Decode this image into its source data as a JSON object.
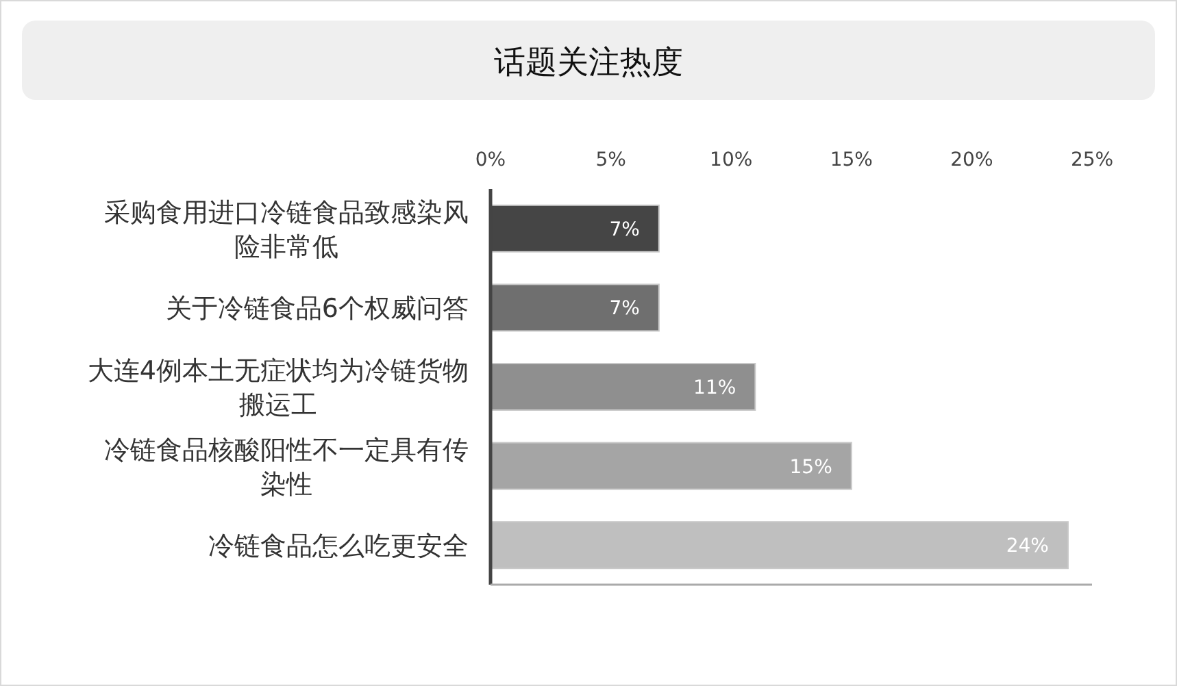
{
  "chart_data": {
    "type": "bar",
    "orientation": "horizontal",
    "title": "话题关注热度",
    "categories": [
      "采购食用进口冷链食品致感染风险非常低",
      "关于冷链食品6个权威问答",
      "大连4例本土无症状均为冷链货物搬运工",
      "冷链食品核酸阳性不一定具有传染性",
      "冷链食品怎么吃更安全"
    ],
    "values": [
      7,
      7,
      11,
      15,
      24
    ],
    "value_labels": [
      "7%",
      "7%",
      "11%",
      "15%",
      "24%"
    ],
    "colors": [
      "#454545",
      "#6f6f6f",
      "#8f8f8f",
      "#a5a5a5",
      "#bfbfbf"
    ],
    "xlim": [
      0,
      25
    ],
    "xticks": [
      {
        "value": 0,
        "label": "0%"
      },
      {
        "value": 5,
        "label": "5%"
      },
      {
        "value": 10,
        "label": "10%"
      },
      {
        "value": 15,
        "label": "15%"
      },
      {
        "value": 20,
        "label": "20%"
      },
      {
        "value": 25,
        "label": "25%"
      }
    ]
  }
}
